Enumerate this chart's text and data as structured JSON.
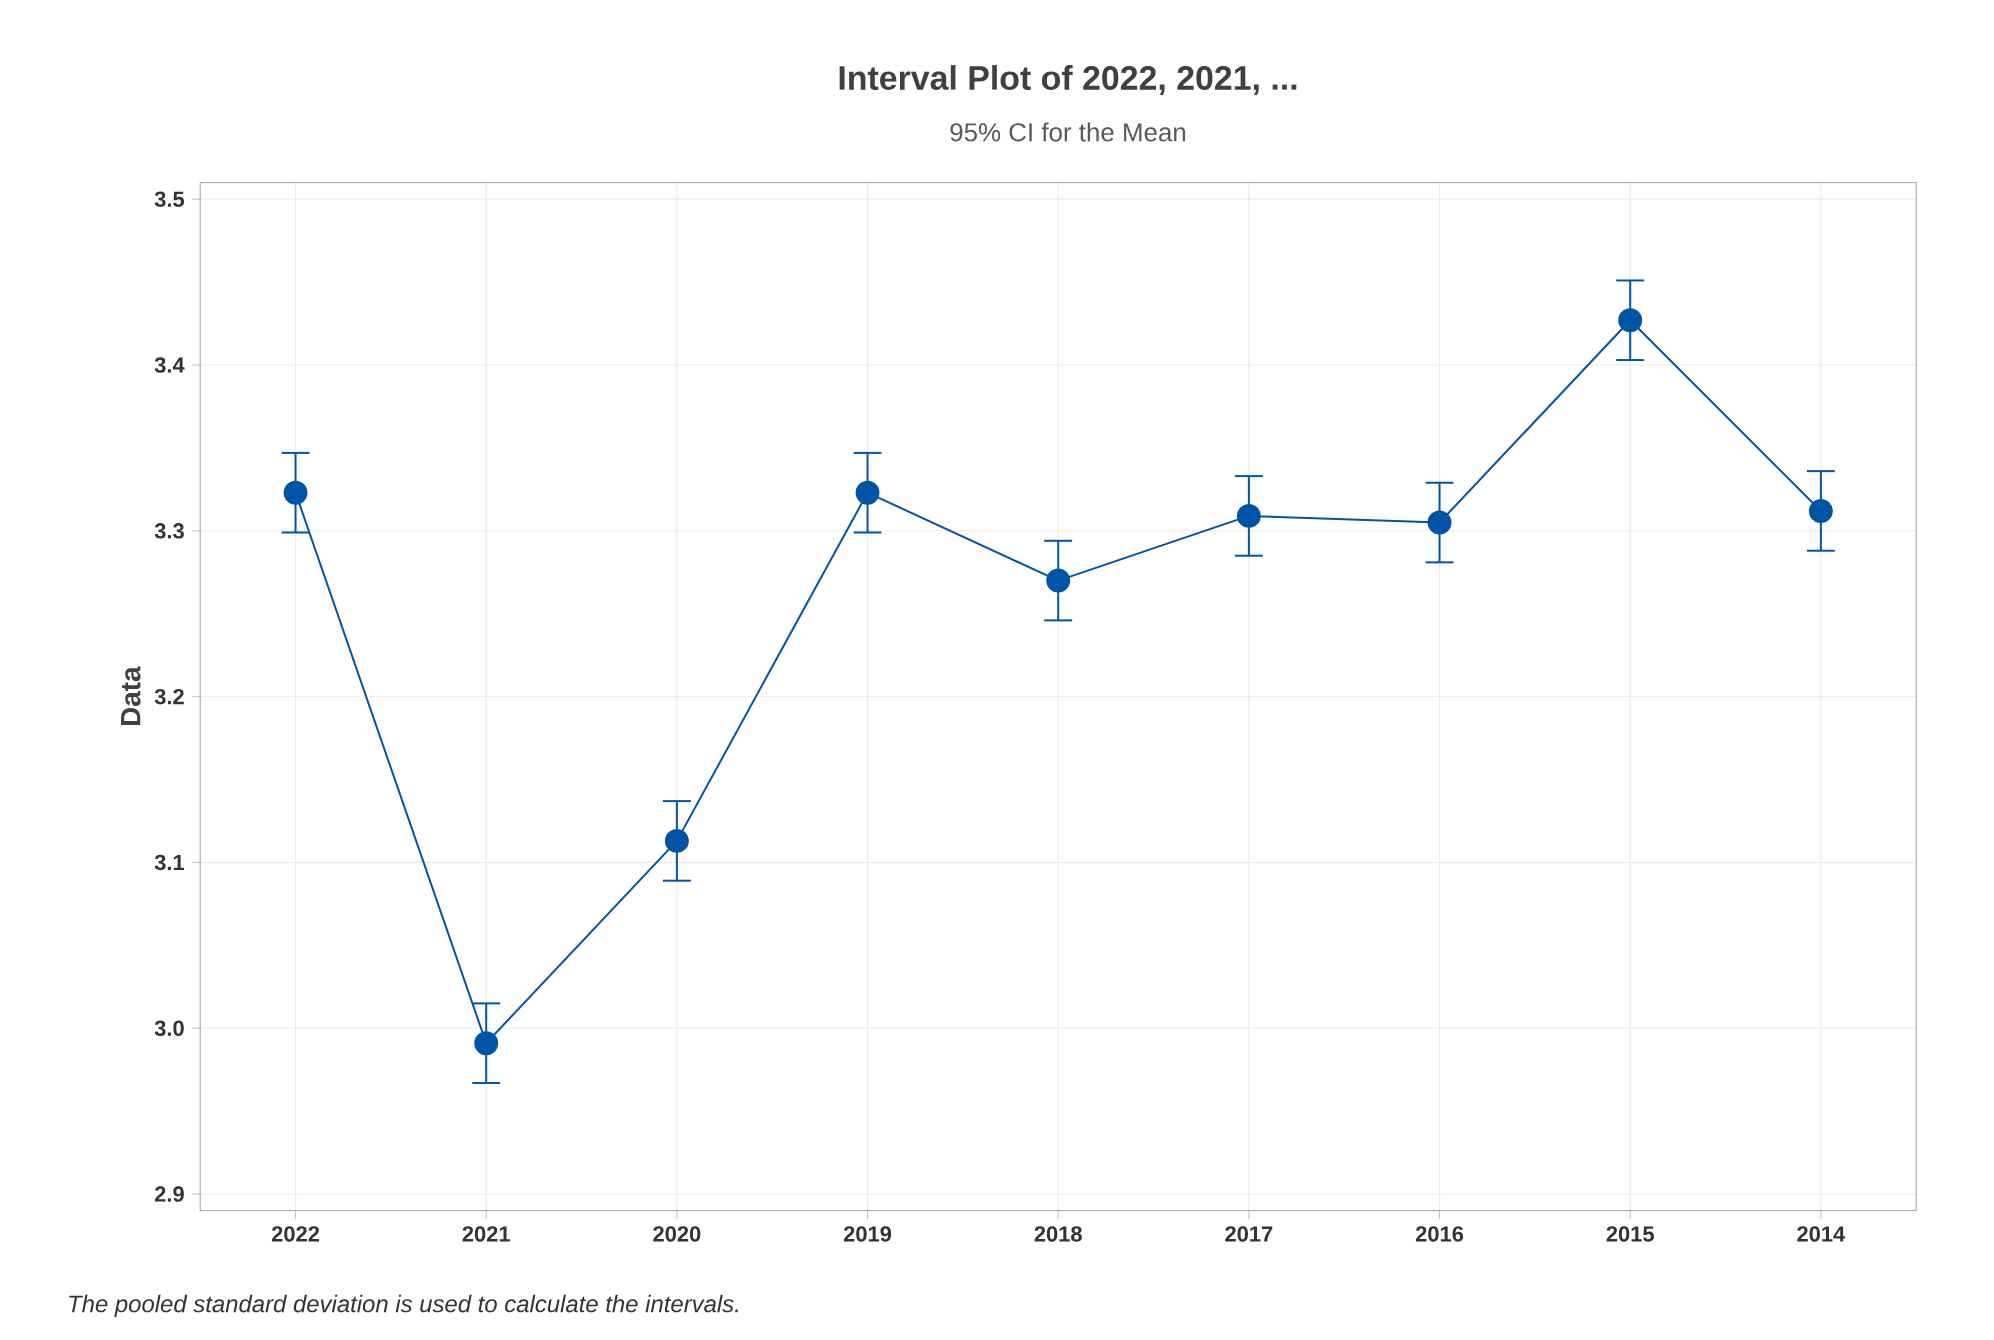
{
  "chart_data": {
    "type": "line",
    "title": "Interval Plot of 2022, 2021, ...",
    "subtitle": "95% CI for the Mean",
    "ylabel": "Data",
    "categories": [
      "2022",
      "2021",
      "2020",
      "2019",
      "2018",
      "2017",
      "2016",
      "2015",
      "2014"
    ],
    "series": [
      {
        "color": "#0054a6",
        "values": [
          3.323,
          2.991,
          3.113,
          3.323,
          3.27,
          3.309,
          3.305,
          3.427,
          3.312
        ],
        "errors": [
          0.024,
          0.024,
          0.024,
          0.024,
          0.024,
          0.024,
          0.024,
          0.024,
          0.024
        ]
      }
    ],
    "ylim": [
      2.89,
      3.51
    ],
    "yticks": [
      2.9,
      {
        "value": 3,
        "label": "3.0"
      },
      3.1,
      3.2,
      3.3,
      3.4,
      3.5
    ],
    "grid": true,
    "marker": "circle",
    "line_style": "solid",
    "annotations": [
      "The pooled standard deviation is used to calculate the intervals."
    ]
  }
}
